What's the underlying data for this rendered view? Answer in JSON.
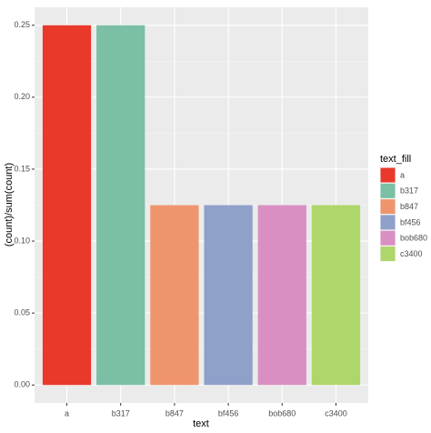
{
  "chart_data": {
    "type": "bar",
    "x_label": "text",
    "y_label": "(count)/sum(count)",
    "legend_title": "text_fill",
    "categories": [
      "a",
      "b317",
      "b847",
      "bf456",
      "bob680",
      "c3400"
    ],
    "values": [
      0.25,
      0.25,
      0.125,
      0.125,
      0.125,
      0.125
    ],
    "colors": [
      "#e8392a",
      "#7bbfa5",
      "#ef956d",
      "#8fa0c9",
      "#d98fc1",
      "#aed66a"
    ],
    "ylim": [
      -0.0125,
      0.2625
    ],
    "yticks": [
      {
        "value": 0,
        "label": "0.00"
      },
      0.05,
      {
        "value": 0.1,
        "label": "0.10"
      },
      0.15,
      {
        "value": 0.2,
        "label": "0.20"
      },
      0.25
    ],
    "grid": true,
    "legend": "right"
  }
}
